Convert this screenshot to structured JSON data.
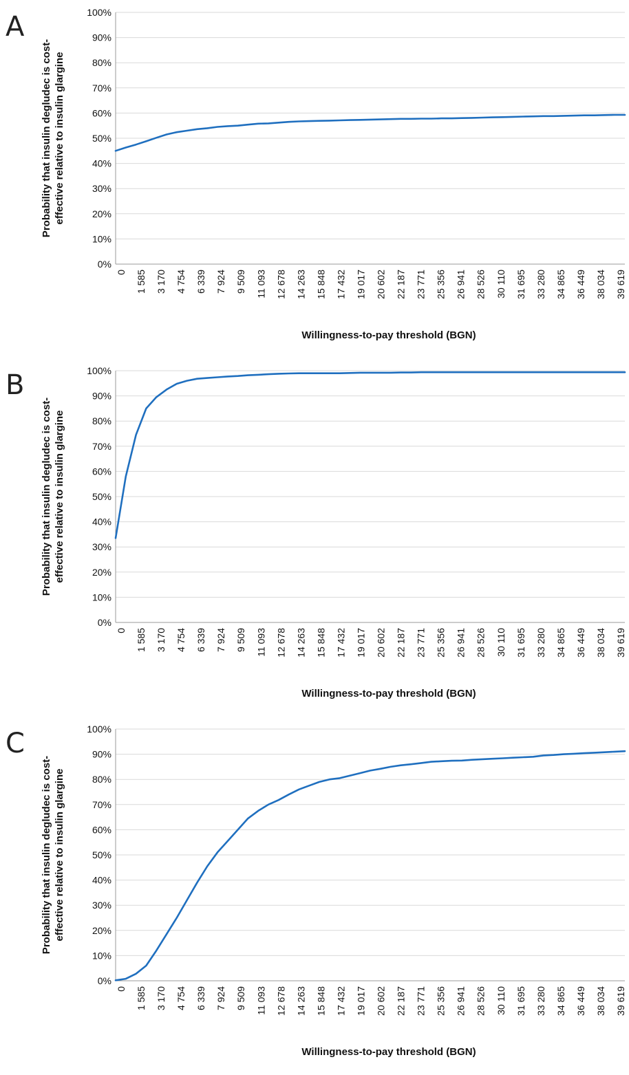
{
  "chart_data": [
    {
      "type": "line",
      "panel_label": "A",
      "xlabel": "Willingness-to-pay threshold (BGN)",
      "ylabel_lines": [
        "Probability that insulin degludec is cost-",
        "effective relative to insulin glargine"
      ],
      "ylim": [
        0,
        100
      ],
      "yticks": [
        "0%",
        "10%",
        "20%",
        "30%",
        "40%",
        "50%",
        "60%",
        "70%",
        "80%",
        "90%",
        "100%"
      ],
      "x_tick_labels": [
        "0",
        "1 585",
        "3 170",
        "4 754",
        "6 339",
        "7 924",
        "9 509",
        "11 093",
        "12 678",
        "14 263",
        "15 848",
        "17 432",
        "19 017",
        "20 602",
        "22 187",
        "23 771",
        "25 356",
        "26 941",
        "28 526",
        "30 110",
        "31 695",
        "33 280",
        "34 865",
        "36 449",
        "38 034",
        "39 619"
      ],
      "grid": true,
      "series_color": "#1f6fbf",
      "x": [
        0,
        792,
        1585,
        2377,
        3170,
        3962,
        4754,
        5547,
        6339,
        7132,
        7924,
        8717,
        9509,
        10301,
        11093,
        11886,
        12678,
        13471,
        14263,
        15056,
        15848,
        16640,
        17432,
        18225,
        19017,
        19810,
        20602,
        21395,
        22187,
        22979,
        23771,
        24564,
        25356,
        26149,
        26941,
        27734,
        28526,
        29318,
        30110,
        30903,
        31695,
        32488,
        33280,
        34073,
        34865,
        35657,
        36449,
        37242,
        38034,
        38827,
        39619
      ],
      "y": [
        45,
        46.3,
        47.5,
        48.8,
        50.2,
        51.5,
        52.4,
        53,
        53.6,
        54,
        54.5,
        54.8,
        55,
        55.4,
        55.8,
        55.9,
        56.2,
        56.5,
        56.7,
        56.8,
        56.9,
        57,
        57.1,
        57.2,
        57.3,
        57.4,
        57.5,
        57.6,
        57.7,
        57.7,
        57.8,
        57.8,
        57.9,
        57.9,
        58,
        58.1,
        58.2,
        58.3,
        58.4,
        58.5,
        58.6,
        58.7,
        58.8,
        58.8,
        58.9,
        59,
        59.1,
        59.1,
        59.2,
        59.3,
        59.3
      ]
    },
    {
      "type": "line",
      "panel_label": "B",
      "xlabel": "Willingness-to-pay threshold (BGN)",
      "ylabel_lines": [
        "Probability that insulin degludec is cost-",
        "effective relative to insulin glargine"
      ],
      "ylim": [
        0,
        100
      ],
      "yticks": [
        "0%",
        "10%",
        "20%",
        "30%",
        "40%",
        "50%",
        "60%",
        "70%",
        "80%",
        "90%",
        "100%"
      ],
      "x_tick_labels": [
        "0",
        "1 585",
        "3 170",
        "4 754",
        "6 339",
        "7 924",
        "9 509",
        "11 093",
        "12 678",
        "14 263",
        "15 848",
        "17 432",
        "19 017",
        "20 602",
        "22 187",
        "23 771",
        "25 356",
        "26 941",
        "28 526",
        "30 110",
        "31 695",
        "33 280",
        "34 865",
        "36 449",
        "38 034",
        "39 619"
      ],
      "grid": true,
      "series_color": "#1f6fbf",
      "x": [
        0,
        792,
        1585,
        2377,
        3170,
        3962,
        4754,
        5547,
        6339,
        7132,
        7924,
        8717,
        9509,
        10301,
        11093,
        11886,
        12678,
        13471,
        14263,
        15056,
        15848,
        16640,
        17432,
        18225,
        19017,
        19810,
        20602,
        21395,
        22187,
        22979,
        23771,
        24564,
        25356,
        26149,
        26941,
        27734,
        28526,
        29318,
        30110,
        30903,
        31695,
        32488,
        33280,
        34073,
        34865,
        35657,
        36449,
        37242,
        38034,
        38827,
        39619
      ],
      "y": [
        33.5,
        58,
        74.5,
        85,
        89.5,
        92.5,
        94.8,
        96,
        96.8,
        97.1,
        97.4,
        97.7,
        97.9,
        98.2,
        98.4,
        98.6,
        98.8,
        98.9,
        99,
        99,
        99,
        99,
        99,
        99.1,
        99.2,
        99.2,
        99.2,
        99.2,
        99.3,
        99.3,
        99.4,
        99.4,
        99.4,
        99.4,
        99.4,
        99.4,
        99.4,
        99.4,
        99.4,
        99.4,
        99.4,
        99.4,
        99.4,
        99.4,
        99.4,
        99.4,
        99.4,
        99.4,
        99.4,
        99.4,
        99.4
      ]
    },
    {
      "type": "line",
      "panel_label": "C",
      "xlabel": "Willingness-to-pay threshold (BGN)",
      "ylabel_lines": [
        "Probability that insulin degludec is cost-",
        "effective relative to insulin glargine"
      ],
      "ylim": [
        0,
        100
      ],
      "yticks": [
        "0%",
        "10%",
        "20%",
        "30%",
        "40%",
        "50%",
        "60%",
        "70%",
        "80%",
        "90%",
        "100%"
      ],
      "x_tick_labels": [
        "0",
        "1 585",
        "3 170",
        "4 754",
        "6 339",
        "7 924",
        "9 509",
        "11 093",
        "12 678",
        "14 263",
        "15 848",
        "17 432",
        "19 017",
        "20 602",
        "22 187",
        "23 771",
        "25 356",
        "26 941",
        "28 526",
        "30 110",
        "31 695",
        "33 280",
        "34 865",
        "36 449",
        "38 034",
        "39 619"
      ],
      "grid": true,
      "series_color": "#1f6fbf",
      "x": [
        0,
        792,
        1585,
        2377,
        3170,
        3962,
        4754,
        5547,
        6339,
        7132,
        7924,
        8717,
        9509,
        10301,
        11093,
        11886,
        12678,
        13471,
        14263,
        15056,
        15848,
        16640,
        17432,
        18225,
        19017,
        19810,
        20602,
        21395,
        22187,
        22979,
        23771,
        24564,
        25356,
        26149,
        26941,
        27734,
        28526,
        29318,
        30110,
        30903,
        31695,
        32488,
        33280,
        34073,
        34865,
        35657,
        36449,
        37242,
        38034,
        38827,
        39619
      ],
      "y": [
        0.2,
        0.8,
        2.8,
        6,
        12,
        18.5,
        25,
        32,
        39,
        45.5,
        51,
        55.5,
        60,
        64.5,
        67.5,
        70,
        71.8,
        74,
        76,
        77.5,
        79,
        80,
        80.5,
        81.5,
        82.5,
        83.5,
        84.2,
        85,
        85.6,
        86,
        86.5,
        87,
        87.2,
        87.4,
        87.5,
        87.8,
        88,
        88.2,
        88.4,
        88.6,
        88.8,
        89,
        89.5,
        89.7,
        90,
        90.2,
        90.4,
        90.6,
        90.8,
        91,
        91.2
      ]
    }
  ]
}
